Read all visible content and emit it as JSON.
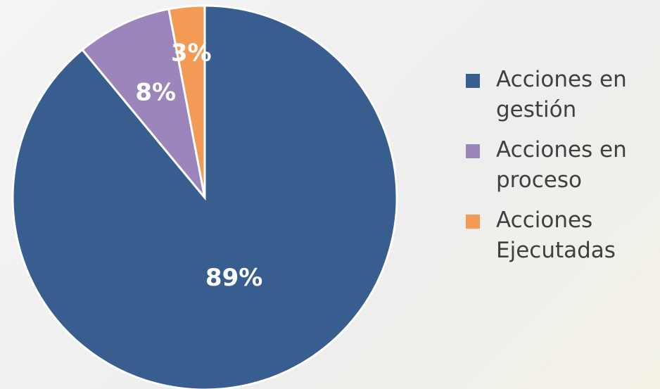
{
  "chart_data": {
    "type": "pie",
    "categories": [
      "Acciones en gestión",
      "Acciones en proceso",
      "Acciones Ejecutadas"
    ],
    "values": [
      89,
      8,
      3
    ],
    "value_labels": [
      "89%",
      "8%",
      "3%"
    ],
    "colors": [
      "#375e8f",
      "#9b85ba",
      "#f39b55"
    ],
    "legend": "right"
  }
}
